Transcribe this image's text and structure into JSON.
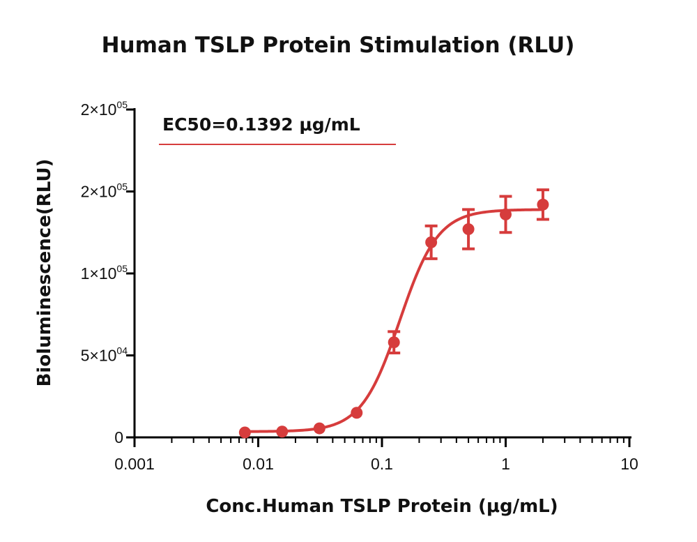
{
  "chart_data": {
    "type": "scatter",
    "title": "Human TSLP Protein Stimulation (RLU)",
    "xlabel": "Conc.Human TSLP Protein (μg/mL)",
    "ylabel": "Bioluminescence(RLU)",
    "x_scale": "log",
    "xlim": [
      0.001,
      10
    ],
    "ylim": [
      0,
      200000
    ],
    "x_ticks": [
      {
        "value": 0.001,
        "label": "0.001"
      },
      {
        "value": 0.01,
        "label": "0.01"
      },
      {
        "value": 0.1,
        "label": "0.1"
      },
      {
        "value": 1,
        "label": "1"
      },
      {
        "value": 10,
        "label": "10"
      }
    ],
    "y_ticks": [
      {
        "value": 0,
        "label": "0",
        "exp": ""
      },
      {
        "value": 50000,
        "label": "5×10",
        "exp": "04"
      },
      {
        "value": 100000,
        "label": "1×10",
        "exp": "05"
      },
      {
        "value": 150000,
        "label": "2×10",
        "exp": "05"
      },
      {
        "value": 200000,
        "label": "2×10",
        "exp": "05"
      }
    ],
    "annotation": "EC50=0.1392 μg/mL",
    "grid": false,
    "color": "#d63c3c",
    "series": [
      {
        "x": [
          0.0078,
          0.0156,
          0.03125,
          0.0625,
          0.125,
          0.25,
          0.5,
          1,
          2
        ],
        "y": [
          3000,
          3500,
          5500,
          15000,
          58000,
          119000,
          127000,
          136000,
          142000
        ],
        "error": [
          700,
          700,
          800,
          1500,
          6500,
          10000,
          12000,
          11000,
          9000
        ]
      }
    ],
    "fit": {
      "model": "4PL",
      "bottom": 3500,
      "top": 139000,
      "ec50": 0.1392,
      "hill": 2.8
    }
  }
}
